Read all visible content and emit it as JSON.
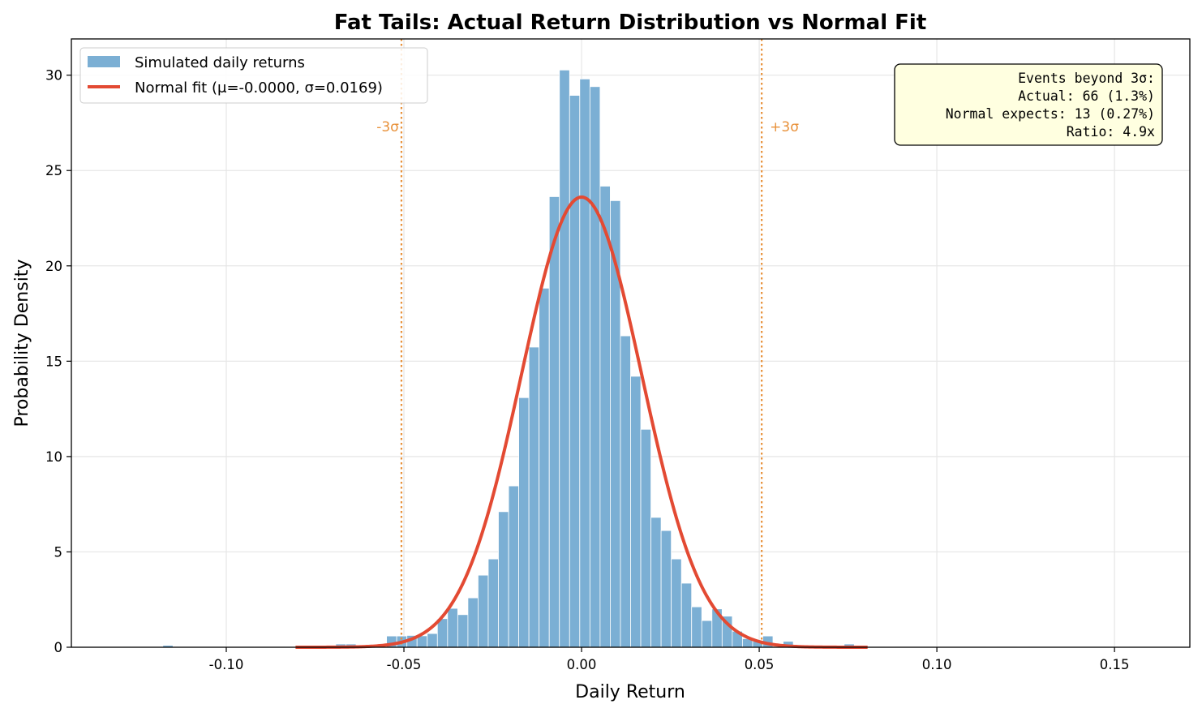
{
  "chart_data": {
    "type": "bar",
    "title": "Fat Tails: Actual Return Distribution vs Normal Fit",
    "xlabel": "Daily Return",
    "ylabel": "Probability Density",
    "xlim": [
      -0.1436,
      0.1712
    ],
    "ylim": [
      0,
      31.9
    ],
    "grid": true,
    "x_ticks": [
      -0.1,
      -0.05,
      0.0,
      0.05,
      0.1,
      0.15
    ],
    "x_tick_labels": [
      "-0.10",
      "-0.05",
      "0.00",
      "0.05",
      "0.10",
      "0.15"
    ],
    "y_ticks": [
      0,
      5,
      10,
      15,
      20,
      25,
      30
    ],
    "y_tick_labels": [
      "0",
      "5",
      "10",
      "15",
      "20",
      "25",
      "30"
    ],
    "histogram": {
      "name": "Simulated daily returns",
      "color": "#7bafd4",
      "bin_start": -0.1293,
      "bin_width": 0.002862,
      "values": [
        0.04,
        0,
        0,
        0,
        0.1,
        0,
        0,
        0,
        0,
        0,
        0,
        0,
        0.04,
        0,
        0,
        0,
        0.02,
        0,
        0,
        0,
        0,
        0.17,
        0.17,
        0,
        0,
        0.04,
        0.59,
        0.59,
        0.62,
        0.6,
        0.72,
        1.5,
        2.04,
        1.71,
        2.59,
        3.78,
        4.63,
        7.11,
        8.46,
        13.09,
        15.74,
        18.83,
        23.63,
        30.27,
        28.94,
        29.8,
        29.4,
        24.18,
        23.42,
        16.33,
        14.21,
        11.43,
        6.81,
        6.12,
        4.63,
        3.36,
        2.12,
        1.4,
        2.01,
        1.63,
        0.84,
        0.45,
        0.31,
        0.59,
        0.04,
        0.31,
        0.04,
        0,
        0,
        0,
        0,
        0.17,
        0,
        0,
        0,
        0.02,
        0,
        0,
        0,
        0,
        0,
        0,
        0,
        0,
        0,
        0.02,
        0,
        0,
        0.02,
        0,
        0,
        0,
        0,
        0,
        0,
        0,
        0,
        0,
        0.02,
        0
      ]
    },
    "normal_fit": {
      "name": "Normal fit (μ=-0.0000, σ=0.0169)",
      "mu": 0.0,
      "sigma": 0.0169,
      "x_range": [
        -0.0805,
        0.0805
      ],
      "color": "#e34a33"
    },
    "sigma_lines": [
      {
        "label": "-3σ",
        "x": -0.0507
      },
      {
        "label": "+3σ",
        "x": 0.0507
      }
    ],
    "sigma_line_color": "#e8913a",
    "legend": {
      "placement": "upper-left",
      "entries": [
        "Simulated daily returns",
        "Normal fit (μ=-0.0000, σ=0.0169)"
      ]
    },
    "annotation_box": {
      "placement": "upper-right",
      "background": "#ffffe0",
      "lines": [
        "Events beyond 3σ:",
        "Actual: 66 (1.3%)",
        "Normal expects: 13 (0.27%)",
        "Ratio: 4.9x"
      ]
    }
  }
}
